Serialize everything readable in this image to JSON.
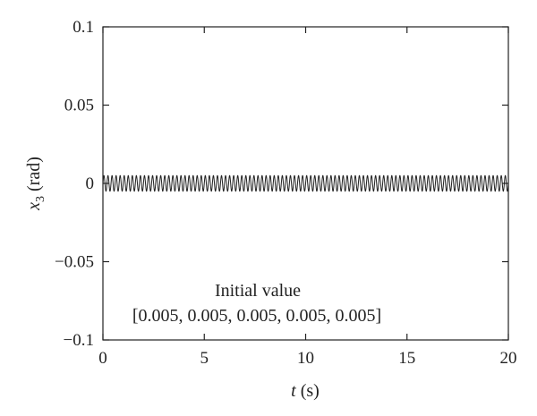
{
  "chart_data": {
    "type": "line",
    "xlabel_var": "t",
    "xlabel_unit": "(s)",
    "ylabel_var": "x",
    "ylabel_sub": "3",
    "ylabel_unit": "(rad)",
    "xlim": [
      0,
      20
    ],
    "ylim": [
      -0.1,
      0.1
    ],
    "x_ticks": [
      0,
      5,
      10,
      15,
      20
    ],
    "x_tick_labels": [
      "0",
      "5",
      "10",
      "15",
      "20"
    ],
    "y_ticks": [
      0.1,
      0.05,
      0,
      -0.05,
      -0.1
    ],
    "y_tick_labels": [
      "0.1",
      "0.05",
      "0",
      "−0.05",
      "−0.1"
    ],
    "grid": false,
    "series": [
      {
        "kind": "sinusoid",
        "amplitude": 0.005,
        "frequency_hz": 5,
        "x_start": 0,
        "x_end": 20,
        "color": "#222222"
      }
    ],
    "annotations": [
      {
        "text": "Initial value"
      },
      {
        "text": "[0.005, 0.005, 0.005, 0.005, 0.005]"
      }
    ]
  }
}
